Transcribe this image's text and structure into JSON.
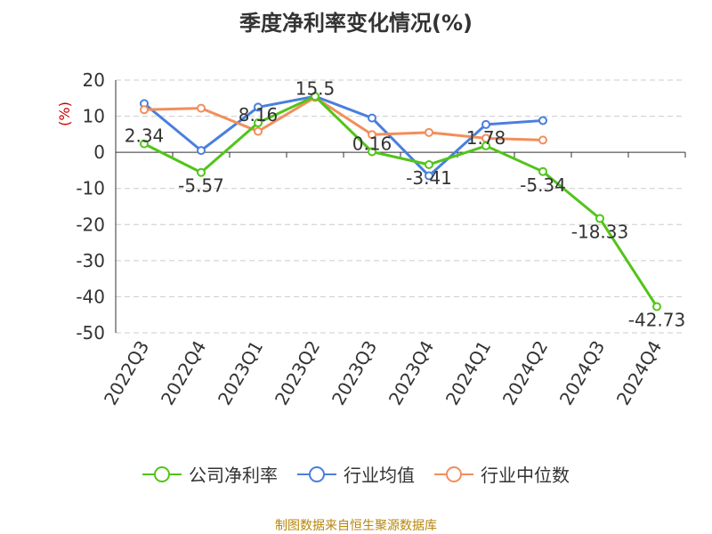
{
  "chart_data": {
    "type": "line",
    "title": "季度净利率变化情况(%)",
    "ylabel": "(%)",
    "categories": [
      "2022Q3",
      "2022Q4",
      "2023Q1",
      "2023Q2",
      "2023Q3",
      "2023Q4",
      "2024Q1",
      "2024Q2",
      "2024Q3",
      "2024Q4"
    ],
    "ylim": [
      -50,
      20
    ],
    "yticks": [
      "20",
      "10",
      "0",
      "-10",
      "-20",
      "-30",
      "-40",
      "-50"
    ],
    "grid": true,
    "legend_position": "bottom",
    "series": [
      {
        "name": "公司净利率",
        "color": "#52c41a",
        "values": [
          2.34,
          -5.57,
          8.16,
          15.5,
          0.16,
          -3.41,
          1.78,
          -5.34,
          -18.33,
          -42.73
        ],
        "labels": [
          "2.34",
          "-5.57",
          "8.16",
          "15.5",
          "0.16",
          "-3.41",
          "1.78",
          "-5.34",
          "-18.33",
          "-42.73"
        ]
      },
      {
        "name": "行业均值",
        "color": "#4a7fdc",
        "values": [
          13.5,
          0.5,
          12.5,
          15.5,
          9.5,
          -6.5,
          7.7,
          8.8,
          null,
          null
        ]
      },
      {
        "name": "行业中位数",
        "color": "#f28e5b",
        "values": [
          11.8,
          12.2,
          5.8,
          15.2,
          4.9,
          5.5,
          3.9,
          3.4,
          null,
          null
        ]
      }
    ]
  },
  "source": "制图数据来自恒生聚源数据库"
}
